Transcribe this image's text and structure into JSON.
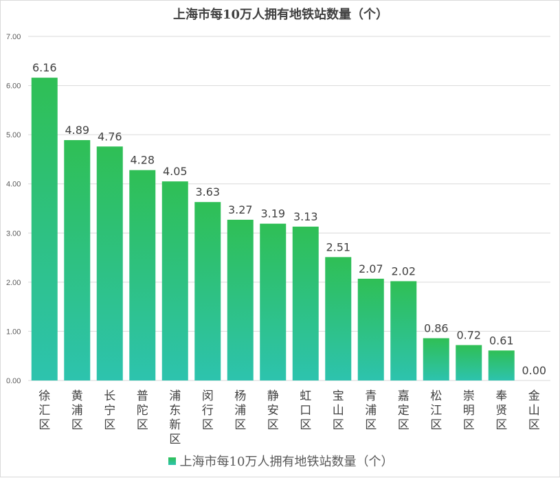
{
  "chart_data": {
    "type": "bar",
    "title": "上海市每10万人拥有地铁站数量（个）",
    "categories": [
      "徐汇区",
      "黄浦区",
      "长宁区",
      "普陀区",
      "浦东新区",
      "闵行区",
      "杨浦区",
      "静安区",
      "虹口区",
      "宝山区",
      "青浦区",
      "嘉定区",
      "松江区",
      "崇明区",
      "奉贤区",
      "金山区"
    ],
    "values": [
      6.16,
      4.89,
      4.76,
      4.28,
      4.05,
      3.63,
      3.27,
      3.19,
      3.13,
      2.51,
      2.07,
      2.02,
      0.86,
      0.72,
      0.61,
      0.0
    ],
    "value_labels": [
      "6.16",
      "4.89",
      "4.76",
      "4.28",
      "4.05",
      "3.63",
      "3.27",
      "3.19",
      "3.13",
      "2.51",
      "2.07",
      "2.02",
      "0.86",
      "0.72",
      "0.61",
      "0.00"
    ],
    "yticks": [
      "0.00",
      "1.00",
      "2.00",
      "3.00",
      "4.00",
      "5.00",
      "6.00",
      "7.00"
    ],
    "ylim": [
      0,
      7
    ],
    "legend": "上海市每10万人拥有地铁站数量（个）",
    "legend_position": "bottom",
    "grid": true,
    "xlabel": "",
    "ylabel": "",
    "colors": {
      "bar_top": "#2fbf55",
      "bar_bottom": "#2dc3ae",
      "grid": "#d9d9d9",
      "text": "#404040"
    }
  }
}
